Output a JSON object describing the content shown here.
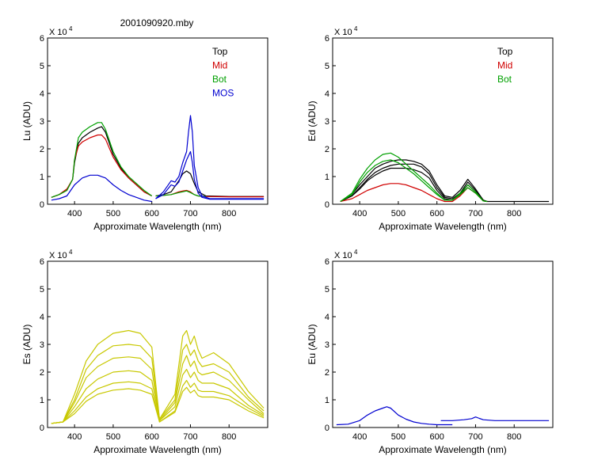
{
  "figure_title": "2001090920.mby",
  "chart_data": [
    {
      "id": "lu",
      "type": "line",
      "ylabel": "Lu (ADU)",
      "xlabel": "Approximate Wavelength (nm)",
      "xlim": [
        330,
        900
      ],
      "ylim": [
        0,
        6
      ],
      "y_multiplier": "X 10",
      "y_exponent": "4",
      "xticks": [
        400,
        500,
        600,
        700,
        800
      ],
      "yticks": [
        0,
        1,
        2,
        3,
        4,
        5,
        6
      ],
      "legend": [
        {
          "name": "Top",
          "color": "#000000"
        },
        {
          "name": "Mid",
          "color": "#d00000"
        },
        {
          "name": "Bot",
          "color": "#00a000"
        },
        {
          "name": "MOS",
          "color": "#0000d0"
        }
      ],
      "series": [
        {
          "name": "Top",
          "color": "#000000",
          "x": [
            340,
            360,
            380,
            395,
            400,
            410,
            420,
            440,
            460,
            470,
            480,
            500,
            520,
            540,
            560,
            580,
            600
          ],
          "y": [
            0.25,
            0.35,
            0.5,
            0.9,
            1.5,
            2.2,
            2.4,
            2.6,
            2.75,
            2.8,
            2.6,
            1.8,
            1.3,
            0.95,
            0.7,
            0.45,
            0.3
          ]
        },
        {
          "name": "Mid",
          "color": "#d00000",
          "x": [
            340,
            360,
            380,
            395,
            400,
            410,
            420,
            440,
            460,
            470,
            480,
            500,
            520,
            540,
            560,
            580,
            600
          ],
          "y": [
            0.25,
            0.35,
            0.55,
            0.9,
            1.6,
            2.1,
            2.25,
            2.4,
            2.5,
            2.5,
            2.35,
            1.7,
            1.25,
            0.95,
            0.7,
            0.45,
            0.3
          ]
        },
        {
          "name": "Bot",
          "color": "#00a000",
          "x": [
            340,
            360,
            380,
            395,
            400,
            410,
            420,
            440,
            460,
            470,
            480,
            500,
            520,
            540,
            560,
            580,
            600
          ],
          "y": [
            0.25,
            0.35,
            0.5,
            0.9,
            1.6,
            2.4,
            2.6,
            2.8,
            2.95,
            2.95,
            2.7,
            1.9,
            1.35,
            1.0,
            0.75,
            0.5,
            0.3
          ]
        },
        {
          "name": "MOS",
          "color": "#0000d0",
          "x": [
            340,
            360,
            380,
            400,
            420,
            440,
            460,
            480,
            500,
            520,
            540,
            560,
            580,
            600
          ],
          "y": [
            0.15,
            0.2,
            0.3,
            0.7,
            0.95,
            1.05,
            1.05,
            0.95,
            0.7,
            0.5,
            0.35,
            0.25,
            0.15,
            0.1
          ]
        },
        {
          "name": "Top-red",
          "color": "#000000",
          "x": [
            610,
            630,
            650,
            670,
            680,
            690,
            700,
            710,
            720,
            740,
            800,
            890
          ],
          "y": [
            0.3,
            0.35,
            0.45,
            0.85,
            1.1,
            1.2,
            1.1,
            0.75,
            0.45,
            0.3,
            0.28,
            0.28
          ]
        },
        {
          "name": "Mid-red",
          "color": "#d00000",
          "x": [
            610,
            630,
            650,
            670,
            680,
            690,
            700,
            710,
            720,
            740,
            800,
            890
          ],
          "y": [
            0.3,
            0.32,
            0.35,
            0.45,
            0.48,
            0.5,
            0.45,
            0.35,
            0.3,
            0.28,
            0.27,
            0.27
          ]
        },
        {
          "name": "Bot-red",
          "color": "#00a000",
          "x": [
            610,
            630,
            650,
            670,
            680,
            690,
            700,
            710,
            720,
            740
          ],
          "y": [
            0.3,
            0.32,
            0.35,
            0.42,
            0.45,
            0.48,
            0.42,
            0.35,
            0.3,
            0.28
          ]
        },
        {
          "name": "MOS-red",
          "color": "#0000d0",
          "x": [
            610,
            630,
            650,
            660,
            670,
            680,
            690,
            695,
            700,
            705,
            710,
            720,
            730,
            750,
            890
          ],
          "y": [
            0.2,
            0.45,
            0.85,
            0.8,
            1.0,
            1.5,
            1.9,
            2.6,
            3.2,
            2.6,
            1.4,
            0.6,
            0.3,
            0.2,
            0.2
          ]
        },
        {
          "name": "MOS-2",
          "color": "#0000d0",
          "x": [
            610,
            630,
            650,
            660,
            670,
            680,
            690,
            700,
            705,
            710,
            720,
            730,
            750,
            890
          ],
          "y": [
            0.2,
            0.35,
            0.7,
            0.65,
            0.8,
            1.2,
            1.6,
            1.9,
            1.5,
            0.9,
            0.4,
            0.25,
            0.18,
            0.18
          ]
        }
      ]
    },
    {
      "id": "ed",
      "type": "line",
      "ylabel": "Ed (ADU)",
      "xlabel": "Approximate Wavelength (nm)",
      "xlim": [
        330,
        900
      ],
      "ylim": [
        0,
        6
      ],
      "y_multiplier": "X 10",
      "y_exponent": "4",
      "xticks": [
        400,
        500,
        600,
        700,
        800
      ],
      "yticks": [
        0,
        1,
        2,
        3,
        4,
        5,
        6
      ],
      "legend": [
        {
          "name": "Top",
          "color": "#000000"
        },
        {
          "name": "Mid",
          "color": "#d00000"
        },
        {
          "name": "Bot",
          "color": "#00a000"
        }
      ],
      "series": [
        {
          "name": "Top",
          "color": "#000000",
          "x": [
            350,
            380,
            400,
            420,
            440,
            460,
            480,
            500,
            520,
            540,
            560,
            580,
            600,
            620,
            640,
            660,
            680,
            700,
            720,
            730,
            890
          ],
          "y": [
            0.1,
            0.3,
            0.6,
            0.9,
            1.15,
            1.3,
            1.4,
            1.45,
            1.45,
            1.45,
            1.35,
            1.1,
            0.6,
            0.25,
            0.2,
            0.4,
            0.8,
            0.5,
            0.15,
            0.1,
            0.1
          ]
        },
        {
          "name": "Top-2",
          "color": "#000000",
          "x": [
            350,
            380,
            400,
            420,
            440,
            460,
            480,
            500,
            520,
            540,
            560,
            580,
            600,
            620,
            640,
            660,
            680,
            700,
            720,
            730
          ],
          "y": [
            0.1,
            0.35,
            0.7,
            1.0,
            1.3,
            1.45,
            1.55,
            1.6,
            1.6,
            1.55,
            1.45,
            1.2,
            0.7,
            0.3,
            0.25,
            0.5,
            0.9,
            0.55,
            0.15,
            0.1
          ]
        },
        {
          "name": "Top-3",
          "color": "#000000",
          "x": [
            350,
            380,
            400,
            420,
            440,
            460,
            480,
            500,
            520,
            540,
            560,
            580,
            600,
            620,
            640,
            660,
            680,
            700,
            720,
            730
          ],
          "y": [
            0.1,
            0.3,
            0.55,
            0.85,
            1.05,
            1.2,
            1.3,
            1.3,
            1.3,
            1.25,
            1.15,
            0.95,
            0.5,
            0.2,
            0.15,
            0.35,
            0.7,
            0.45,
            0.12,
            0.1
          ]
        },
        {
          "name": "Mid",
          "color": "#d00000",
          "x": [
            350,
            380,
            400,
            420,
            440,
            460,
            480,
            500,
            520,
            540,
            560,
            580,
            600,
            620,
            640,
            660,
            680,
            700,
            720,
            730
          ],
          "y": [
            0.1,
            0.2,
            0.35,
            0.5,
            0.6,
            0.7,
            0.75,
            0.75,
            0.7,
            0.6,
            0.5,
            0.35,
            0.2,
            0.1,
            0.1,
            0.3,
            0.6,
            0.4,
            0.12,
            0.1
          ]
        },
        {
          "name": "Bot",
          "color": "#00a000",
          "x": [
            350,
            380,
            400,
            420,
            440,
            460,
            480,
            500,
            520,
            540,
            560,
            580,
            600,
            620,
            640,
            660,
            680,
            700,
            720,
            730
          ],
          "y": [
            0.1,
            0.4,
            0.9,
            1.3,
            1.6,
            1.8,
            1.85,
            1.7,
            1.45,
            1.2,
            0.95,
            0.7,
            0.4,
            0.15,
            0.15,
            0.4,
            0.7,
            0.45,
            0.12,
            0.1
          ]
        },
        {
          "name": "Bot-2",
          "color": "#00a000",
          "x": [
            350,
            380,
            400,
            420,
            440,
            460,
            480,
            500,
            520,
            540,
            560,
            580,
            600,
            620,
            640,
            660,
            680,
            700,
            720,
            730
          ],
          "y": [
            0.1,
            0.35,
            0.8,
            1.15,
            1.4,
            1.55,
            1.6,
            1.5,
            1.3,
            1.1,
            0.85,
            0.6,
            0.35,
            0.15,
            0.15,
            0.35,
            0.6,
            0.4,
            0.12,
            0.1
          ]
        }
      ]
    },
    {
      "id": "es",
      "type": "line",
      "ylabel": "Es (ADU)",
      "xlabel": "Approximate Wavelength (nm)",
      "xlim": [
        330,
        900
      ],
      "ylim": [
        0,
        6
      ],
      "y_multiplier": "X 10",
      "y_exponent": "4",
      "xticks": [
        400,
        500,
        600,
        700,
        800
      ],
      "yticks": [
        0,
        1,
        2,
        3,
        4,
        5,
        6
      ],
      "legend": [],
      "series": [
        {
          "name": "Es-1",
          "color": "#c8c800",
          "x": [
            340,
            370,
            400,
            430,
            460,
            500,
            540,
            570,
            600,
            620,
            660,
            680,
            690,
            700,
            710,
            720,
            730,
            760,
            800,
            850,
            890
          ],
          "y": [
            0.15,
            0.2,
            1.2,
            2.4,
            3.0,
            3.4,
            3.5,
            3.4,
            2.9,
            0.3,
            1.2,
            3.3,
            3.5,
            3.0,
            3.3,
            2.8,
            2.5,
            2.7,
            2.3,
            1.3,
            0.7
          ]
        },
        {
          "name": "Es-2",
          "color": "#c8c800",
          "x": [
            340,
            370,
            400,
            430,
            460,
            500,
            540,
            570,
            600,
            620,
            660,
            680,
            690,
            700,
            710,
            720,
            730,
            760,
            800,
            850,
            890
          ],
          "y": [
            0.15,
            0.2,
            1.0,
            2.1,
            2.6,
            2.95,
            3.0,
            2.95,
            2.5,
            0.3,
            1.0,
            2.8,
            3.0,
            2.6,
            2.8,
            2.4,
            2.2,
            2.3,
            2.0,
            1.1,
            0.6
          ]
        },
        {
          "name": "Es-3",
          "color": "#c8c800",
          "x": [
            340,
            370,
            400,
            430,
            460,
            500,
            540,
            570,
            600,
            620,
            660,
            680,
            690,
            700,
            710,
            720,
            730,
            760,
            800,
            850,
            890
          ],
          "y": [
            0.15,
            0.2,
            0.9,
            1.8,
            2.2,
            2.5,
            2.55,
            2.5,
            2.1,
            0.25,
            0.9,
            2.3,
            2.6,
            2.2,
            2.4,
            2.0,
            1.9,
            2.0,
            1.7,
            1.0,
            0.5
          ]
        },
        {
          "name": "Es-4",
          "color": "#c8c800",
          "x": [
            340,
            370,
            400,
            430,
            460,
            500,
            540,
            570,
            600,
            620,
            660,
            680,
            690,
            700,
            710,
            720,
            730,
            760,
            800,
            850,
            890
          ],
          "y": [
            0.15,
            0.2,
            0.75,
            1.4,
            1.75,
            2.0,
            2.05,
            2.0,
            1.7,
            0.25,
            0.75,
            1.9,
            2.1,
            1.8,
            2.0,
            1.7,
            1.6,
            1.6,
            1.4,
            0.8,
            0.45
          ]
        },
        {
          "name": "Es-5",
          "color": "#c8c800",
          "x": [
            340,
            370,
            400,
            430,
            460,
            500,
            540,
            570,
            600,
            620,
            660,
            680,
            690,
            700,
            710,
            720,
            730,
            760,
            800,
            850,
            890
          ],
          "y": [
            0.15,
            0.2,
            0.6,
            1.1,
            1.4,
            1.6,
            1.65,
            1.6,
            1.4,
            0.2,
            0.6,
            1.5,
            1.7,
            1.45,
            1.6,
            1.35,
            1.3,
            1.3,
            1.15,
            0.7,
            0.4
          ]
        },
        {
          "name": "Es-6",
          "color": "#c8c800",
          "x": [
            340,
            370,
            400,
            430,
            460,
            500,
            540,
            570,
            600,
            620,
            660,
            680,
            690,
            700,
            710,
            720,
            730,
            760,
            800,
            850,
            890
          ],
          "y": [
            0.15,
            0.2,
            0.5,
            0.95,
            1.2,
            1.35,
            1.4,
            1.35,
            1.2,
            0.2,
            0.55,
            1.3,
            1.45,
            1.25,
            1.35,
            1.15,
            1.1,
            1.1,
            1.0,
            0.6,
            0.35
          ]
        }
      ]
    },
    {
      "id": "eu",
      "type": "line",
      "ylabel": "Eu (ADU)",
      "xlabel": "Approximate Wavelength (nm)",
      "xlim": [
        330,
        900
      ],
      "ylim": [
        0,
        6
      ],
      "y_multiplier": "X 10",
      "y_exponent": "4",
      "xticks": [
        400,
        500,
        600,
        700,
        800
      ],
      "yticks": [
        0,
        1,
        2,
        3,
        4,
        5,
        6
      ],
      "legend": [],
      "series": [
        {
          "name": "Eu-1",
          "color": "#0000d0",
          "x": [
            340,
            370,
            400,
            420,
            440,
            460,
            470,
            480,
            500,
            520,
            540,
            560,
            580,
            600,
            640
          ],
          "y": [
            0.1,
            0.12,
            0.25,
            0.45,
            0.6,
            0.7,
            0.75,
            0.7,
            0.45,
            0.3,
            0.2,
            0.15,
            0.12,
            0.1,
            0.1
          ]
        },
        {
          "name": "Eu-2",
          "color": "#0000d0",
          "x": [
            610,
            640,
            670,
            690,
            700,
            710,
            720,
            750,
            800,
            890
          ],
          "y": [
            0.25,
            0.25,
            0.28,
            0.32,
            0.38,
            0.33,
            0.28,
            0.25,
            0.25,
            0.25
          ]
        }
      ]
    }
  ]
}
